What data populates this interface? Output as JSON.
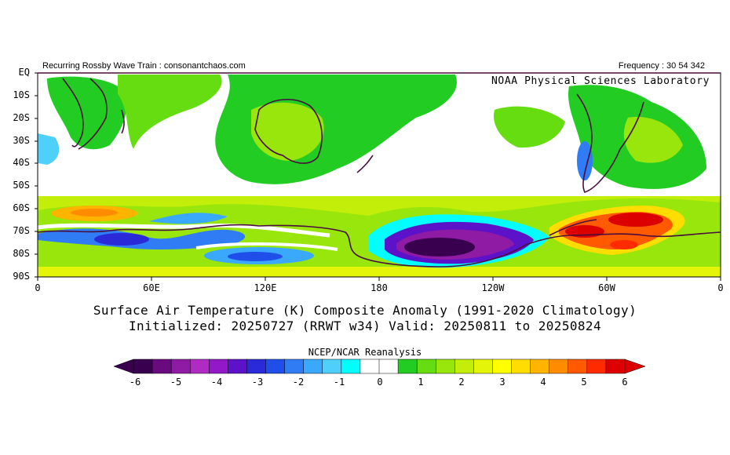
{
  "header": {
    "left": "Recurring Rossby Wave Train : consonantchaos.com",
    "right": "Frequency : 30 54 342",
    "lab": "NOAA Physical Sciences Laboratory"
  },
  "map": {
    "lat_labels": [
      "EQ",
      "10S",
      "20S",
      "30S",
      "40S",
      "50S",
      "60S",
      "70S",
      "80S",
      "90S"
    ],
    "lon_labels": [
      "0",
      "60E",
      "120E",
      "180",
      "120W",
      "60W",
      "0"
    ]
  },
  "title": {
    "line1": "Surface Air Temperature (K) Composite Anomaly (1991-2020 Climatology)",
    "line2": "Initialized: 20250727 (RRWT w34) Valid: 20250811 to 20250824"
  },
  "colorbar": {
    "source": "NCEP/NCAR Reanalysis",
    "labels": [
      "-6",
      "-5",
      "-4",
      "-3",
      "-2",
      "-1",
      "0",
      "1",
      "2",
      "3",
      "4",
      "5",
      "6"
    ],
    "colors": [
      "#3a0050",
      "#6a0a7f",
      "#8f1aa4",
      "#b02bc2",
      "#9318c8",
      "#5b12c8",
      "#2a2ad8",
      "#1f4ee8",
      "#2f7cf4",
      "#3aa8fb",
      "#4fd0fb",
      "#00ffff",
      "#ffffff",
      "#ffffff",
      "#22cc22",
      "#66dd11",
      "#99e60d",
      "#c2ee0a",
      "#e4f50a",
      "#ffff00",
      "#ffdd00",
      "#ffb400",
      "#ff8c00",
      "#ff5a00",
      "#ff2a00",
      "#dd0000"
    ]
  }
}
